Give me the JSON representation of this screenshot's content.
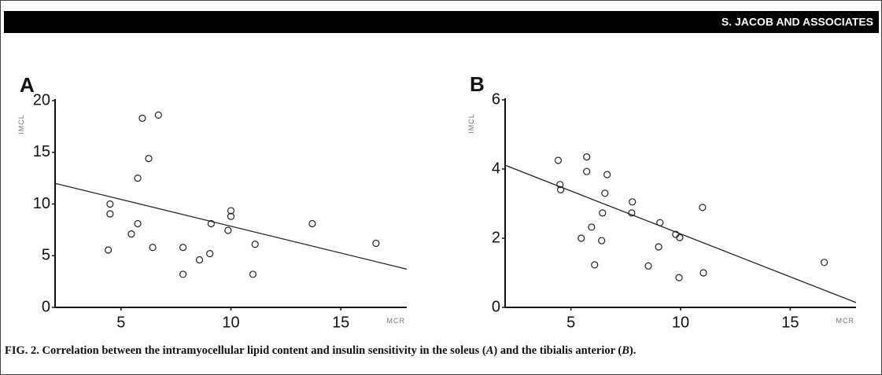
{
  "header": {
    "running_head": "S. JACOB AND ASSOCIATES"
  },
  "chart_data": [
    {
      "type": "scatter",
      "panel_label": "A",
      "xlabel": "MCR",
      "ylabel": "IMCL",
      "x": [
        5.97,
        6.7,
        6.26,
        5.76,
        4.5,
        4.5,
        5.76,
        5.47,
        4.42,
        6.44,
        7.82,
        7.82,
        8.57,
        9.04,
        9.1,
        10.0,
        10.0,
        9.87,
        11.1,
        11.0,
        13.7,
        16.6
      ],
      "values": [
        18.3,
        18.6,
        14.4,
        12.5,
        10.0,
        9.05,
        8.1,
        7.1,
        5.55,
        5.8,
        5.8,
        3.2,
        4.6,
        5.2,
        8.1,
        9.35,
        8.8,
        7.45,
        6.1,
        3.2,
        8.1,
        6.2
      ],
      "fit_line": {
        "x": [
          2,
          18
        ],
        "values": [
          12.0,
          3.7
        ]
      },
      "xlim": [
        2,
        18
      ],
      "ylim": [
        0,
        20
      ],
      "xticks": [
        5,
        10,
        15
      ],
      "yticks": [
        0,
        5,
        10,
        15,
        20
      ],
      "color": "#222222"
    },
    {
      "type": "scatter",
      "panel_label": "B",
      "xlabel": "MCR",
      "ylabel": "IMCL",
      "x": [
        4.42,
        4.5,
        4.53,
        5.72,
        5.72,
        6.65,
        6.55,
        6.44,
        5.94,
        5.47,
        6.4,
        6.08,
        7.8,
        7.77,
        9.06,
        9.0,
        9.78,
        9.96,
        8.53,
        9.93,
        11.0,
        11.04,
        16.55
      ],
      "values": [
        4.25,
        3.55,
        3.4,
        4.35,
        3.93,
        3.84,
        3.3,
        2.73,
        2.32,
        2.0,
        1.93,
        1.23,
        3.05,
        2.73,
        2.45,
        1.75,
        2.11,
        2.02,
        1.2,
        0.86,
        2.89,
        1.0,
        1.3
      ],
      "fit_line": {
        "x": [
          2,
          18
        ],
        "values": [
          4.11,
          0.14
        ]
      },
      "xlim": [
        2,
        18
      ],
      "ylim": [
        0,
        6
      ],
      "xticks": [
        5,
        10,
        15
      ],
      "yticks": [
        0,
        2,
        4,
        6
      ],
      "color": "#222222"
    }
  ],
  "caption": [
    "FIG. 2. Correlation between the intramyocellular lipid content and insulin sensitivity in the soleus (",
    "A",
    ") and the tibialis anterior (",
    "B",
    ")."
  ]
}
